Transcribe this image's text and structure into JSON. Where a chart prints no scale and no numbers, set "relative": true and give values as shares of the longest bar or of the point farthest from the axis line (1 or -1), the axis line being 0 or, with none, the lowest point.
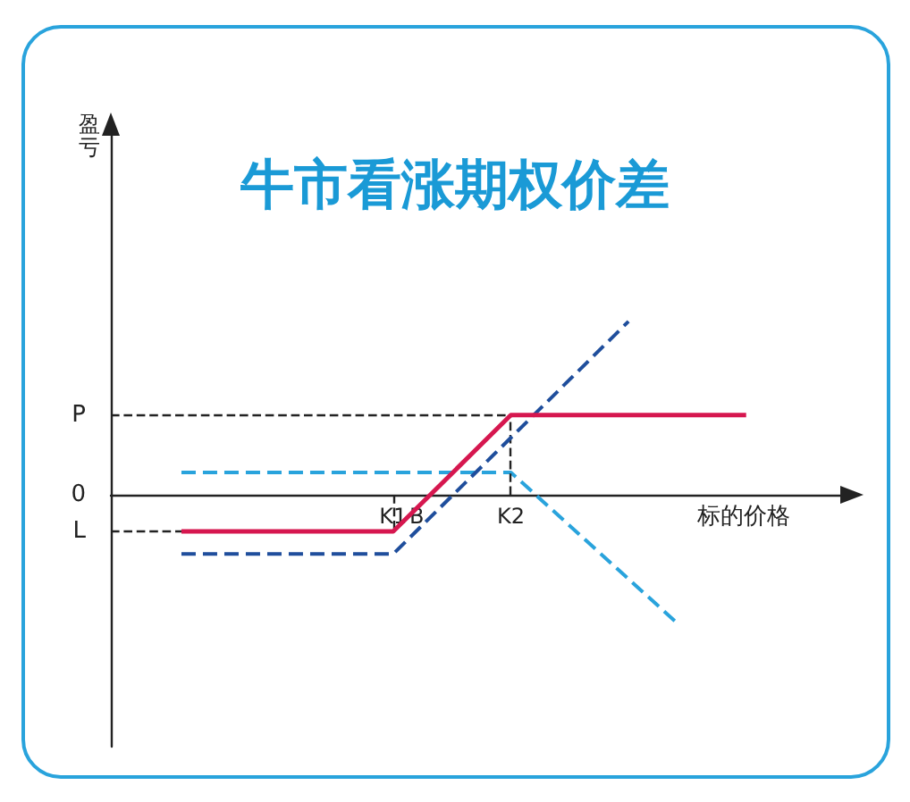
{
  "chart_data": {
    "type": "line",
    "title": "牛市看涨期权价差",
    "annotations": [
      "盈亏",
      "0"
    ],
    "xlabel": "标的价格",
    "relative": true,
    "categories": [
      null,
      null,
      null,
      null,
      null,
      null,
      null,
      null,
      null,
      null,
      null,
      null,
      "K1",
      "B",
      null,
      null,
      null,
      "K2",
      null,
      null,
      null,
      null,
      null,
      null,
      null,
      null,
      null,
      null,
      null,
      null,
      null,
      null
    ],
    "marker": "none",
    "grid": false,
    "series": [
      {
        "color": "#d6174f",
        "line_style": "solid",
        "values": [
          null,
          null,
          null,
          -0.21,
          null,
          null,
          null,
          null,
          null,
          null,
          null,
          null,
          -0.21,
          null,
          null,
          null,
          null,
          0.46,
          null,
          null,
          null,
          null,
          null,
          null,
          null,
          null,
          null,
          0.46,
          null,
          null,
          null,
          null
        ]
      },
      {
        "color": "#1f4e9c",
        "line_style": "dashed",
        "values": [
          null,
          null,
          null,
          -0.34,
          null,
          null,
          null,
          null,
          null,
          null,
          null,
          null,
          -0.34,
          null,
          null,
          null,
          null,
          null,
          null,
          null,
          null,
          null,
          1,
          null,
          null,
          null,
          null,
          null,
          null,
          null,
          null,
          null
        ]
      },
      {
        "color": "#29a3dc",
        "line_style": "dashed",
        "values": [
          null,
          null,
          null,
          0.13,
          null,
          null,
          null,
          null,
          null,
          null,
          null,
          null,
          null,
          null,
          null,
          null,
          null,
          0.13,
          null,
          null,
          null,
          null,
          null,
          null,
          -0.73,
          null,
          null,
          null,
          null,
          null,
          null,
          null
        ]
      }
    ],
    "ref_lines": [
      {
        "axis": "y",
        "value": 0.46,
        "label": "P",
        "line_style": "dashed",
        "color": "#222222"
      },
      {
        "axis": "y",
        "value": -0.21,
        "label": "L",
        "line_style": "dashed",
        "color": "#222222"
      },
      {
        "axis": "x",
        "value": "K1",
        "line_style": "dashed",
        "color": "#222222"
      },
      {
        "axis": "x",
        "value": "K2",
        "line_style": "dashed",
        "color": "#222222"
      }
    ]
  }
}
